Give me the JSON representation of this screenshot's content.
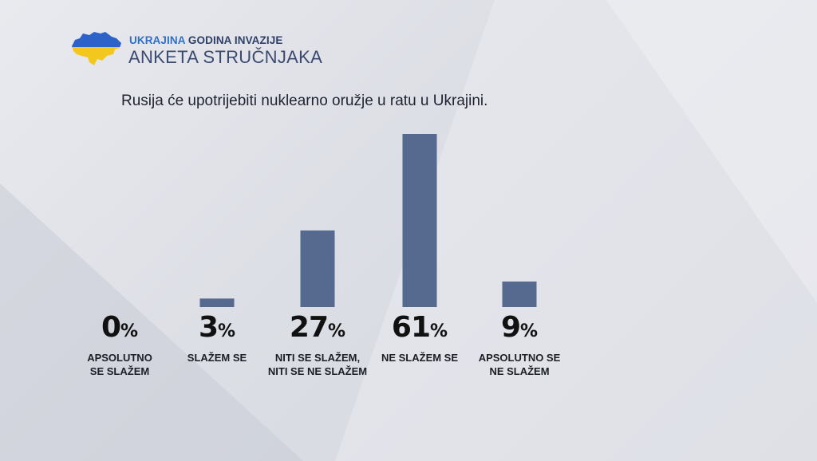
{
  "header": {
    "brand_accent": "UKRAJINA",
    "brand_rest": "GODINA INVAZIJE",
    "subtitle": "ANKETA STRUČNJAKA",
    "flag_colors": {
      "top": "#2d63c8",
      "bottom": "#f2c81e"
    }
  },
  "chart_data": {
    "type": "bar",
    "title": "Rusija će upotrijebiti nuklearno oružje u ratu u Ukrajini.",
    "categories": [
      "APSOLUTNO\nSE SLAŽEM",
      "SLAŽEM SE",
      "NITI SE SLAŽEM,\nNITI SE NE SLAŽEM",
      "NE SLAŽEM SE",
      "APSOLUTNO SE\nNE SLAŽEM"
    ],
    "values": [
      0,
      3,
      27,
      61,
      9
    ],
    "value_labels": [
      "0",
      "3",
      "27",
      "61",
      "9"
    ],
    "unit": "%",
    "ylim": [
      0,
      61
    ],
    "grid": false,
    "bar_color": "#556a8e"
  }
}
